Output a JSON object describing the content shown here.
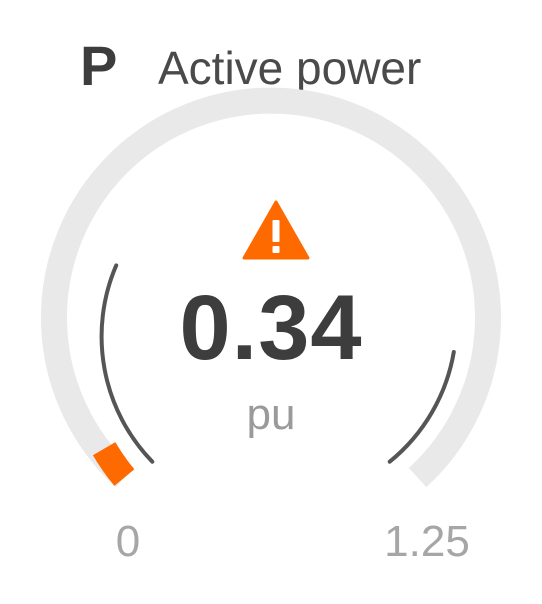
{
  "header": {
    "symbol": "P",
    "title": "Active power"
  },
  "gauge": {
    "value": 0.34,
    "value_text": "0.34",
    "unit": "pu",
    "min_label": "0",
    "max_label": "1.25",
    "min": 0,
    "max": 1.25,
    "status_icon": "warning-triangle-icon",
    "colors": {
      "track": "#e9e9e9",
      "alarm_band": "#ff6a00",
      "limit_line": "#555555",
      "warning_icon": "#ff6a00"
    }
  }
}
